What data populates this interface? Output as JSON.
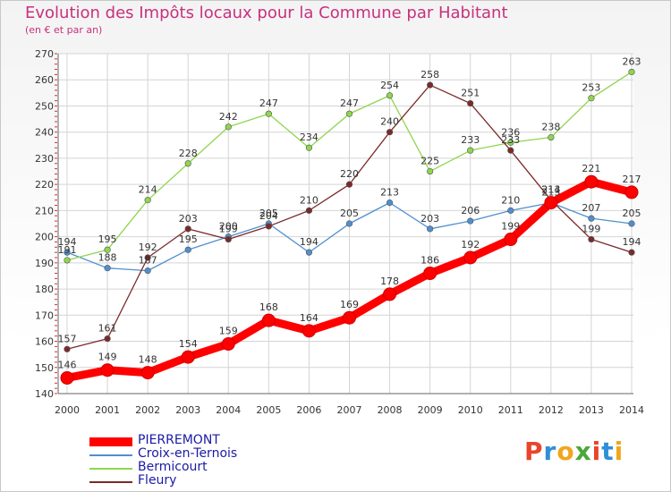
{
  "chart_data": {
    "type": "line",
    "title": "Evolution des Impôts locaux pour la Commune par Habitant",
    "subtitle": "(en € et par an)",
    "xlabel": "",
    "ylabel": "",
    "ylim": [
      140,
      270
    ],
    "y_ticks": [
      "140",
      "150",
      "160",
      "170",
      "180",
      "190",
      "200",
      "210",
      "220",
      "230",
      "240",
      "250",
      "260",
      "270"
    ],
    "categories": [
      "2000",
      "2001",
      "2002",
      "2003",
      "2004",
      "2005",
      "2006",
      "2007",
      "2008",
      "2009",
      "2010",
      "2011",
      "2012",
      "2013",
      "2014"
    ],
    "grid": true,
    "legend_position": "bottom-left",
    "series": [
      {
        "name": "PIERREMONT",
        "color": "#ff0000",
        "values": [
          146,
          149,
          148,
          154,
          159,
          168,
          164,
          169,
          178,
          186,
          192,
          199,
          213,
          221,
          217
        ]
      },
      {
        "name": "Croix-en-Ternois",
        "color": "#4f8fcf",
        "values": [
          194,
          188,
          187,
          195,
          200,
          205,
          194,
          205,
          213,
          203,
          206,
          210,
          213,
          207,
          205
        ]
      },
      {
        "name": "Bermicourt",
        "color": "#8fd54f",
        "values": [
          191,
          195,
          214,
          228,
          242,
          247,
          234,
          247,
          254,
          225,
          233,
          236,
          238,
          253,
          263
        ]
      },
      {
        "name": "Fleury",
        "color": "#7a2a2a",
        "values": [
          157,
          161,
          192,
          203,
          199,
          204,
          210,
          220,
          240,
          258,
          251,
          233,
          214,
          199,
          194
        ]
      }
    ]
  },
  "logo": {
    "text": "Proxiti",
    "letters": [
      "P",
      "r",
      "o",
      "x",
      "i",
      "t",
      "i"
    ],
    "colors": [
      "#e8452a",
      "#2f8fd8",
      "#f2a51c",
      "#4aa838",
      "#e8452a",
      "#2f8fd8",
      "#f2a51c"
    ]
  }
}
